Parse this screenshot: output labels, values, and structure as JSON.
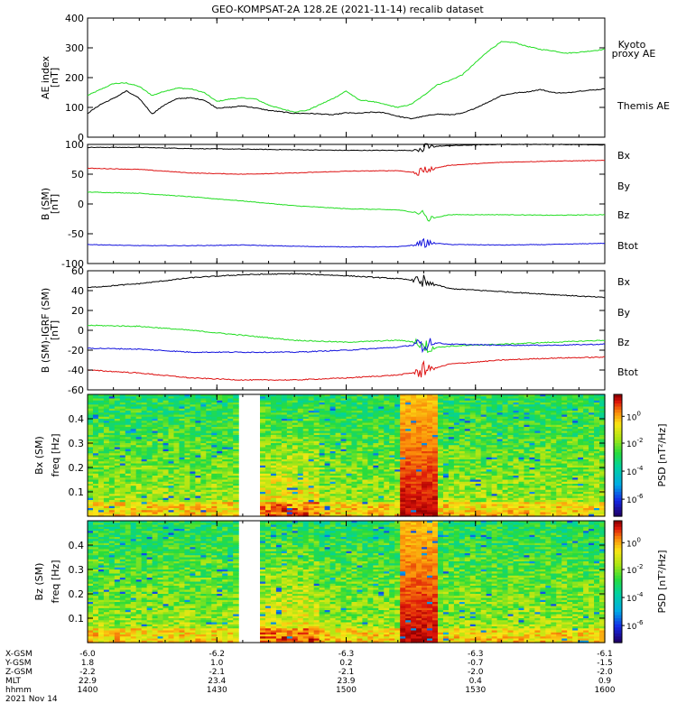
{
  "title": "GEO-KOMPSAT-2A 128.2E (2021-11-14) recalib dataset",
  "colors": {
    "black": "#000000",
    "green": "#22dd22",
    "red": "#dd1111",
    "blue": "#1111dd"
  },
  "chart_data": [
    {
      "type": "line",
      "panel": "ae",
      "ylabel": "AE index [nT]",
      "ylim": [
        0,
        400
      ],
      "yticks": [
        0,
        100,
        200,
        300,
        400
      ],
      "xlim": [
        1400,
        1600
      ],
      "series": [
        {
          "name": "Kyoto proxy AE",
          "color": "#22dd22",
          "x": [
            1400,
            1405,
            1410,
            1415,
            1420,
            1425,
            1430,
            1435,
            1440,
            1445,
            1450,
            1455,
            1460,
            1465,
            1470,
            1475,
            1480,
            1485,
            1490,
            1495,
            1500,
            1505,
            1510,
            1515,
            1520,
            1525,
            1530,
            1535,
            1540,
            1545,
            1550,
            1555,
            1560,
            1565,
            1570,
            1575,
            1580,
            1585,
            1590,
            1595,
            1600
          ],
          "y": [
            140,
            160,
            180,
            182,
            170,
            140,
            155,
            165,
            162,
            150,
            120,
            128,
            132,
            128,
            108,
            95,
            85,
            90,
            110,
            130,
            155,
            125,
            120,
            110,
            100,
            110,
            140,
            175,
            190,
            210,
            250,
            290,
            320,
            318,
            305,
            295,
            290,
            282,
            285,
            290,
            295
          ]
        },
        {
          "name": "Themis AE",
          "color": "#000000",
          "x": [
            1400,
            1405,
            1410,
            1415,
            1420,
            1425,
            1430,
            1435,
            1440,
            1445,
            1450,
            1455,
            1460,
            1465,
            1470,
            1475,
            1480,
            1485,
            1490,
            1495,
            1500,
            1505,
            1510,
            1515,
            1520,
            1525,
            1530,
            1535,
            1540,
            1545,
            1550,
            1555,
            1560,
            1565,
            1570,
            1575,
            1580,
            1585,
            1590,
            1595,
            1600
          ],
          "y": [
            80,
            110,
            130,
            155,
            130,
            78,
            110,
            130,
            132,
            125,
            98,
            100,
            105,
            98,
            90,
            85,
            80,
            80,
            78,
            75,
            82,
            80,
            84,
            82,
            70,
            62,
            70,
            78,
            75,
            80,
            98,
            118,
            140,
            148,
            152,
            160,
            150,
            148,
            155,
            158,
            162
          ]
        }
      ]
    },
    {
      "type": "line",
      "panel": "b_sm",
      "ylabel": "B (SM) [nT]",
      "ylim": [
        -100,
        100
      ],
      "yticks": [
        -100,
        -50,
        0,
        50,
        100
      ],
      "xlim": [
        1400,
        1600
      ],
      "disturbance_at": 1530,
      "series": [
        {
          "name": "Bx",
          "color": "#000000",
          "x": [
            1400,
            1420,
            1440,
            1460,
            1480,
            1500,
            1520,
            1528,
            1532,
            1540,
            1560,
            1580,
            1600
          ],
          "y": [
            95,
            95,
            93,
            92,
            91,
            90,
            90,
            90,
            96,
            98,
            100,
            100,
            99
          ]
        },
        {
          "name": "By",
          "color": "#22dd22",
          "x": [
            1400,
            1420,
            1440,
            1460,
            1480,
            1500,
            1520,
            1528,
            1532,
            1540,
            1560,
            1580,
            1600
          ],
          "y": [
            20,
            18,
            12,
            5,
            -3,
            -8,
            -10,
            -15,
            -25,
            -18,
            -18,
            -19,
            -18
          ]
        },
        {
          "name": "Bz",
          "color": "#dd1111",
          "x": [
            1400,
            1420,
            1440,
            1460,
            1480,
            1500,
            1520,
            1528,
            1532,
            1540,
            1560,
            1580,
            1600
          ],
          "y": [
            60,
            58,
            52,
            50,
            52,
            55,
            56,
            52,
            58,
            65,
            70,
            72,
            73
          ]
        },
        {
          "name": "Btot",
          "color": "#1111dd",
          "x": [
            1400,
            1420,
            1440,
            1460,
            1480,
            1500,
            1520,
            1528,
            1532,
            1540,
            1560,
            1580,
            1600
          ],
          "y": [
            -68,
            -70,
            -70,
            -69,
            -71,
            -72,
            -72,
            -68,
            -65,
            -68,
            -69,
            -68,
            -66
          ]
        }
      ]
    },
    {
      "type": "line",
      "panel": "b_minus_igrf",
      "ylabel": "B (SM)-IGRF (SM) [nT]",
      "ylim": [
        -60,
        60
      ],
      "yticks": [
        -60,
        -40,
        -20,
        0,
        20,
        40,
        60
      ],
      "xlim": [
        1400,
        1600
      ],
      "disturbance_at": 1530,
      "series": [
        {
          "name": "Bx",
          "color": "#000000",
          "x": [
            1400,
            1420,
            1440,
            1460,
            1480,
            1500,
            1520,
            1528,
            1532,
            1540,
            1560,
            1580,
            1600
          ],
          "y": [
            43,
            47,
            53,
            56,
            57,
            55,
            52,
            50,
            48,
            42,
            39,
            36,
            33
          ]
        },
        {
          "name": "By",
          "color": "#22dd22",
          "x": [
            1400,
            1420,
            1440,
            1460,
            1480,
            1500,
            1520,
            1528,
            1532,
            1540,
            1560,
            1580,
            1600
          ],
          "y": [
            5,
            4,
            0,
            -5,
            -10,
            -12,
            -10,
            -12,
            -18,
            -16,
            -14,
            -12,
            -10
          ]
        },
        {
          "name": "Bz",
          "color": "#dd1111",
          "x": [
            1400,
            1420,
            1440,
            1460,
            1480,
            1500,
            1520,
            1528,
            1532,
            1540,
            1560,
            1580,
            1600
          ],
          "y": [
            -40,
            -43,
            -48,
            -50,
            -50,
            -48,
            -45,
            -42,
            -40,
            -34,
            -30,
            -28,
            -27
          ]
        },
        {
          "name": "Btot",
          "color": "#1111dd",
          "x": [
            1400,
            1420,
            1440,
            1460,
            1480,
            1500,
            1520,
            1528,
            1532,
            1540,
            1560,
            1580,
            1600
          ],
          "y": [
            -18,
            -19,
            -22,
            -22,
            -22,
            -20,
            -17,
            -14,
            -12,
            -14,
            -15,
            -15,
            -14
          ]
        }
      ]
    },
    {
      "type": "heatmap",
      "panel": "bx_psd",
      "ylabel": "Bx (SM) freq [Hz]",
      "yticks": [
        0.1,
        0.2,
        0.3,
        0.4
      ],
      "ylim": [
        0,
        0.5
      ],
      "xlim": [
        1400,
        1600
      ],
      "colorbar_label": "PSD [nT²/Hz]",
      "colorbar_ticks": [
        "10^0",
        "10^-2",
        "10^-4",
        "10^-6"
      ],
      "data_gap": [
        1458,
        1467
      ],
      "enhancement": [
        1521,
        1535
      ]
    },
    {
      "type": "heatmap",
      "panel": "bz_psd",
      "ylabel": "Bz (SM) freq [Hz]",
      "yticks": [
        0.1,
        0.2,
        0.3,
        0.4
      ],
      "ylim": [
        0,
        0.5
      ],
      "xlim": [
        1400,
        1600
      ],
      "colorbar_label": "PSD [nT²/Hz]",
      "colorbar_ticks": [
        "10^0",
        "10^-2",
        "10^-4",
        "10^-6"
      ],
      "data_gap": [
        1458,
        1467
      ],
      "enhancement": [
        1521,
        1535
      ]
    }
  ],
  "legends": {
    "ae": [
      "Kyoto",
      "proxy AE",
      "Themis AE"
    ],
    "components": [
      "Bx",
      "By",
      "Bz",
      "Btot"
    ]
  },
  "ephemeris": {
    "labels": [
      "X-GSM",
      "Y-GSM",
      "Z-GSM",
      "MLT",
      "hhmm"
    ],
    "columns": [
      [
        "-6.0",
        "1.8",
        "-2.2",
        "22.9",
        "1400"
      ],
      [
        "-6.2",
        "1.0",
        "-2.1",
        "23.4",
        "1430"
      ],
      [
        "-6.3",
        "0.2",
        "-2.1",
        "23.9",
        "1500"
      ],
      [
        "-6.3",
        "-0.7",
        "-2.0",
        "0.4",
        "1530"
      ],
      [
        "-6.1",
        "-1.5",
        "-2.0",
        "0.9",
        "1600"
      ]
    ],
    "date": "2021 Nov 14"
  }
}
